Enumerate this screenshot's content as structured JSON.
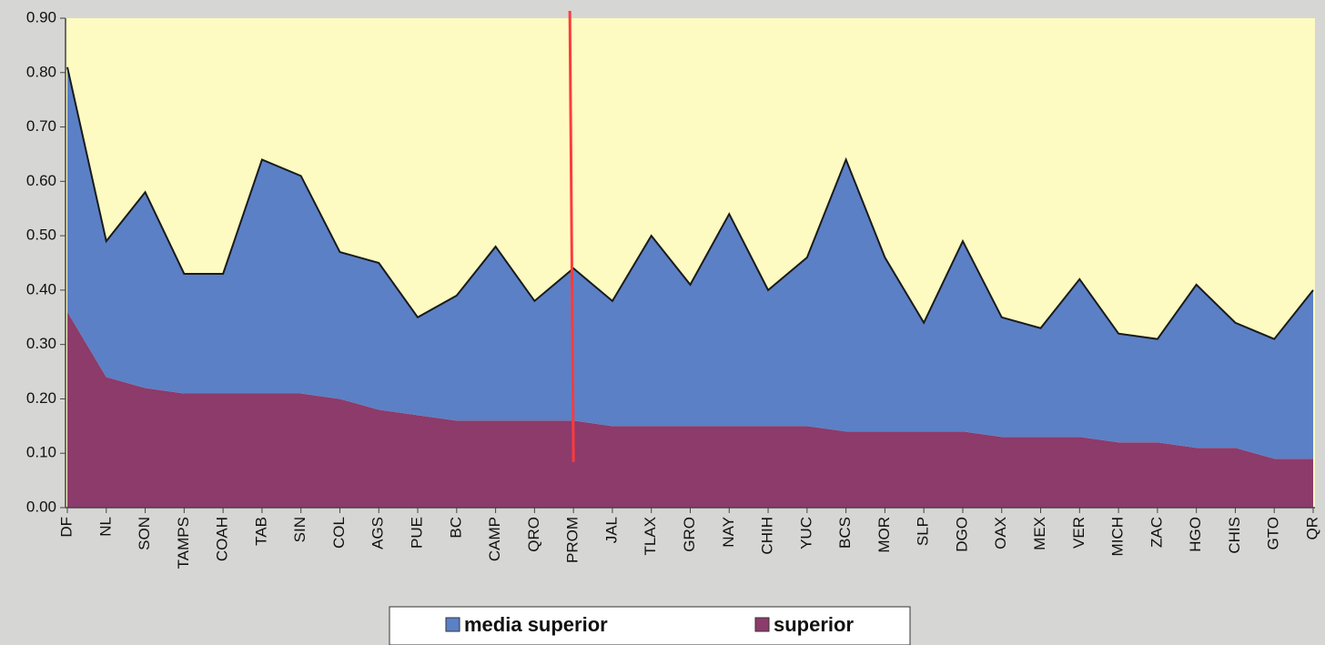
{
  "chart_data": {
    "type": "stacked_area",
    "categories": [
      "DF",
      "NL",
      "SON",
      "TAMPS",
      "COAH",
      "TAB",
      "SIN",
      "COL",
      "AGS",
      "PUE",
      "BC",
      "CAMP",
      "QRO",
      "PROM",
      "JAL",
      "TLAX",
      "GRO",
      "NAY",
      "CHIH",
      "YUC",
      "BCS",
      "MOR",
      "SLP",
      "DGO",
      "OAX",
      "MEX",
      "VER",
      "MICH",
      "ZAC",
      "HGO",
      "CHIS",
      "GTO",
      "QR"
    ],
    "series": [
      {
        "name": "media superior",
        "color": "#5b80c6",
        "values": [
          0.45,
          0.25,
          0.36,
          0.22,
          0.22,
          0.43,
          0.4,
          0.27,
          0.27,
          0.18,
          0.23,
          0.32,
          0.22,
          0.28,
          0.23,
          0.35,
          0.26,
          0.39,
          0.25,
          0.31,
          0.5,
          0.32,
          0.2,
          0.35,
          0.22,
          0.2,
          0.29,
          0.2,
          0.19,
          0.3,
          0.23,
          0.22,
          0.31
        ]
      },
      {
        "name": "superior",
        "color": "#8c3b6b",
        "values": [
          0.36,
          0.24,
          0.22,
          0.21,
          0.21,
          0.21,
          0.21,
          0.2,
          0.18,
          0.17,
          0.16,
          0.16,
          0.16,
          0.16,
          0.15,
          0.15,
          0.15,
          0.15,
          0.15,
          0.15,
          0.14,
          0.14,
          0.14,
          0.14,
          0.13,
          0.13,
          0.13,
          0.12,
          0.12,
          0.11,
          0.11,
          0.09,
          0.09
        ]
      }
    ],
    "ylim": [
      0,
      0.9
    ],
    "yticks": [
      {
        "value": 0,
        "label": "0.00"
      },
      {
        "value": 0.1,
        "label": "0.10"
      },
      {
        "value": 0.2,
        "label": "0.20"
      },
      {
        "value": 0.3,
        "label": "0.30"
      },
      {
        "value": 0.4,
        "label": "0.40"
      },
      {
        "value": 0.5,
        "label": "0.50"
      },
      {
        "value": 0.6,
        "label": "0.60"
      },
      {
        "value": 0.7,
        "label": "0.70"
      },
      {
        "value": 0.8,
        "label": "0.80"
      },
      {
        "value": 0.9,
        "label": "0.90"
      }
    ],
    "plot_background": "#fdfbc2",
    "reference_line": {
      "category": "PROM",
      "color": "#ff3b3b"
    },
    "legend": "bottom"
  }
}
